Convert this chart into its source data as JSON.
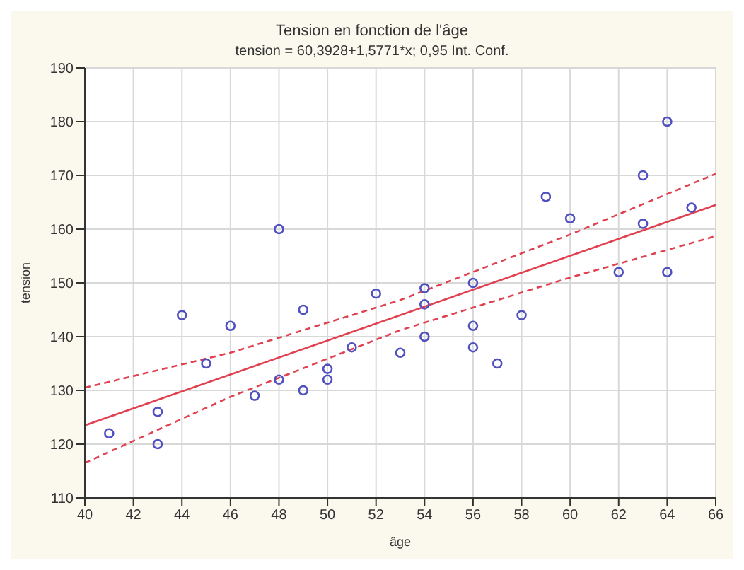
{
  "chart_data": {
    "type": "scatter",
    "title": "Tension en fonction de l'âge",
    "subtitle": "tension = 60,3928+1,5771*x; 0,95 Int. Conf.",
    "xlabel": "âge",
    "ylabel": "tension",
    "xlim": [
      40,
      66
    ],
    "xticks": [
      40,
      42,
      44,
      46,
      48,
      50,
      52,
      54,
      56,
      58,
      60,
      62,
      64,
      66
    ],
    "ylim": [
      110,
      190
    ],
    "yticks": [
      110,
      120,
      130,
      140,
      150,
      160,
      170,
      180,
      190
    ],
    "grid": true,
    "legend": false,
    "series": [
      {
        "color": "#5050c0",
        "marker": "circle",
        "x": [
          41,
          43,
          43,
          44,
          45,
          46,
          47,
          48,
          48,
          49,
          49,
          50,
          50,
          51,
          52,
          53,
          54,
          54,
          54,
          56,
          56,
          56,
          57,
          58,
          59,
          60,
          62,
          63,
          63,
          64,
          64,
          65
        ],
        "values": [
          122,
          126,
          120,
          144,
          135,
          142,
          129,
          160,
          132,
          145,
          130,
          134,
          132,
          138,
          148,
          137,
          149,
          146,
          140,
          150,
          142,
          138,
          135,
          144,
          166,
          162,
          152,
          170,
          161,
          180,
          152,
          164
        ]
      },
      {
        "type": "line",
        "color": "#e04050",
        "line_style": "solid",
        "x": [
          40,
          66
        ],
        "values": [
          123.5,
          164.5
        ]
      },
      {
        "type": "line",
        "color": "#e04050",
        "line_style": "dashed",
        "x": [
          40,
          46,
          53,
          60,
          66
        ],
        "values": [
          130.5,
          137,
          146.8,
          159,
          170.3
        ]
      },
      {
        "type": "line",
        "color": "#e04050",
        "line_style": "dashed",
        "x": [
          40,
          46,
          53,
          60,
          66
        ],
        "values": [
          116.5,
          128.8,
          141.2,
          151,
          158.7
        ]
      }
    ]
  }
}
